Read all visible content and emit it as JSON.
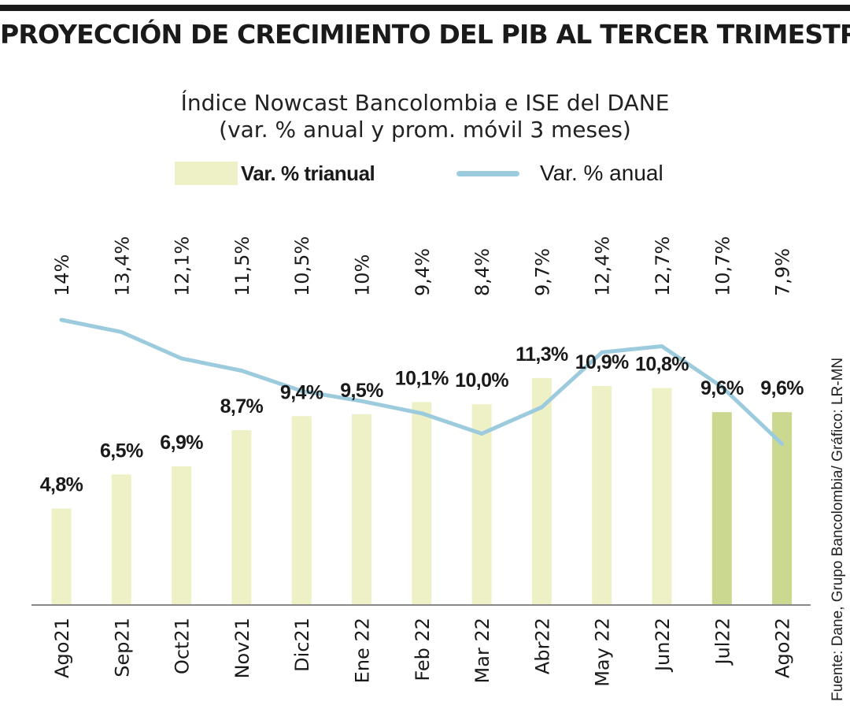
{
  "title": "PROYECCIÓN DE CRECIMIENTO DEL PIB AL TERCER TRIMESTRE",
  "subtitle_line1": "Índice Nowcast Bancolombia e ISE del DANE",
  "subtitle_line2": "(var. % anual y prom. móvil 3 meses)",
  "legend": {
    "bars_label": "Var. % trianual",
    "line_label": "Var. % anual"
  },
  "source": "Fuente: Dane, Grupo Bancolombia/ Gráfico: LR-MN",
  "colors": {
    "bar": "#eef0c6",
    "bar_highlight": "#cad98f",
    "line": "#9ccbde",
    "axis": "#8a8a8a",
    "text": "#1a1a1a"
  },
  "chart_data": {
    "type": "bar",
    "categories": [
      "Ago21",
      "Sep21",
      "Oct21",
      "Nov21",
      "Dic21",
      "Ene 22",
      "Feb 22",
      "Mar 22",
      "Abr22",
      "May 22",
      "Jun22",
      "Jul22",
      "Ago22"
    ],
    "series": [
      {
        "name": "Var. % trianual",
        "type": "bar",
        "values": [
          4.8,
          6.5,
          6.9,
          8.7,
          9.4,
          9.5,
          10.1,
          10.0,
          11.3,
          10.9,
          10.8,
          9.6,
          9.6
        ],
        "labels": [
          "4,8%",
          "6,5%",
          "6,9%",
          "8,7%",
          "9,4%",
          "9,5%",
          "10,1%",
          "10,0%",
          "11,3%",
          "10,9%",
          "10,8%",
          "9,6%",
          "9,6%"
        ],
        "highlighted": [
          false,
          false,
          false,
          false,
          false,
          false,
          false,
          false,
          false,
          false,
          false,
          true,
          true
        ]
      },
      {
        "name": "Var. % anual",
        "type": "line",
        "values": [
          14,
          13.4,
          12.1,
          11.5,
          10.5,
          10,
          9.4,
          8.4,
          9.7,
          12.4,
          12.7,
          10.7,
          7.9
        ],
        "labels": [
          "14%",
          "13,4%",
          "12,1%",
          "11,5%",
          "10,5%",
          "10%",
          "9,4%",
          "8,4%",
          "9,7%",
          "12,4%",
          "12,7%",
          "10,7%",
          "7,9%"
        ]
      }
    ],
    "legend_position": "top",
    "grid": false
  }
}
